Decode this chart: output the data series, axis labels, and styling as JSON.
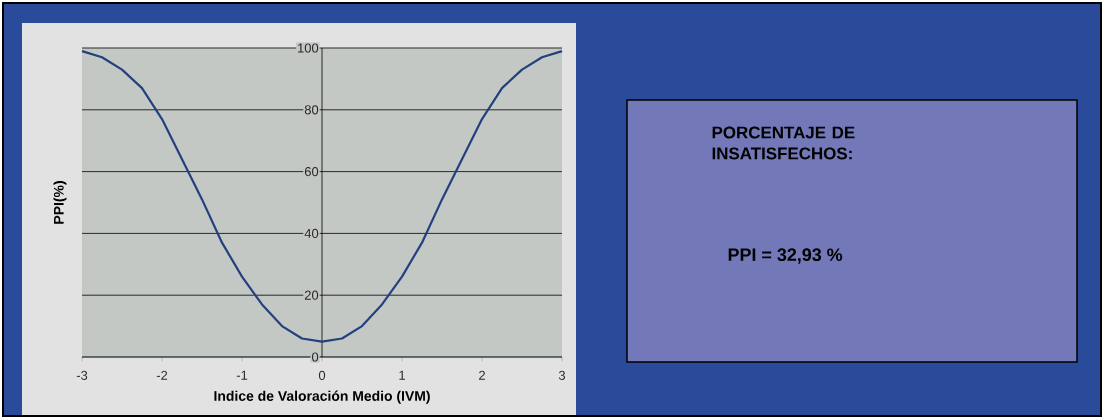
{
  "chart_data": {
    "type": "line",
    "xlabel": "Indice de Valoración Medio (IVM)",
    "ylabel": "PPI(%)",
    "x": [
      -3,
      -2.75,
      -2.5,
      -2.25,
      -2,
      -1.75,
      -1.5,
      -1.25,
      -1,
      -0.75,
      -0.5,
      -0.25,
      0,
      0.25,
      0.5,
      0.75,
      1,
      1.25,
      1.5,
      1.75,
      2,
      2.25,
      2.5,
      2.75,
      3
    ],
    "values": [
      99,
      97,
      93,
      87,
      77,
      64,
      51,
      37,
      26,
      17,
      10,
      6,
      5,
      6,
      10,
      17,
      26,
      37,
      51,
      64,
      77,
      87,
      93,
      97,
      99
    ],
    "color": "#23407f",
    "xlim": [
      -3,
      3
    ],
    "ylim": [
      0,
      100
    ],
    "xticks": [
      -3,
      -2,
      -1,
      0,
      1,
      2,
      3
    ],
    "yticks": [
      0,
      20,
      40,
      60,
      80,
      100
    ],
    "grid": "y",
    "annotations": [
      "PORCENTAJE DE INSATISFECHOS:",
      "PPI = 32,93 %"
    ]
  }
}
